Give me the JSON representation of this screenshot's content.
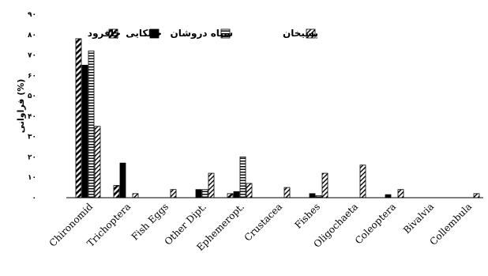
{
  "chart_data": {
    "type": "bar",
    "title": "",
    "xlabel": "",
    "ylabel": "فراوانی (%)",
    "ylim": [
      0,
      90
    ],
    "yticks": [
      "۰",
      "۱۰",
      "۲۰",
      "۳۰",
      "۴۰",
      "۵۰",
      "۶۰",
      "۷۰",
      "۸۰",
      "۹۰"
    ],
    "ytick_values": [
      0,
      10,
      20,
      30,
      40,
      50,
      60,
      70,
      80,
      90
    ],
    "grid": false,
    "legend_position": "top-right",
    "categories": [
      "Chironomid",
      "Trichoptera",
      "Fish Eggs",
      "Other Dipt.",
      "Ephemeropt.",
      "Crustacea",
      "Fishes",
      "Oligochaeta",
      "Coleoptera",
      "Bivalvia",
      "Collembula"
    ],
    "series": [
      {
        "name": "چافرود",
        "pattern": "diag-wide",
        "values": [
          78,
          6,
          0,
          0,
          2,
          0,
          0,
          0,
          0,
          0,
          0
        ]
      },
      {
        "name": "خالکایی",
        "pattern": "solid",
        "values": [
          65,
          17,
          0,
          4,
          3,
          0,
          2,
          0,
          1.5,
          0,
          0
        ]
      },
      {
        "name": "سیاه دروشان",
        "pattern": "horizontal",
        "values": [
          72,
          0,
          0,
          4,
          20,
          0,
          1,
          0,
          0,
          0,
          0
        ]
      },
      {
        "name": "پسیخان",
        "pattern": "diag-narrow",
        "values": [
          35,
          2,
          4,
          12,
          7,
          5,
          12,
          16,
          4,
          0,
          2
        ]
      }
    ]
  }
}
